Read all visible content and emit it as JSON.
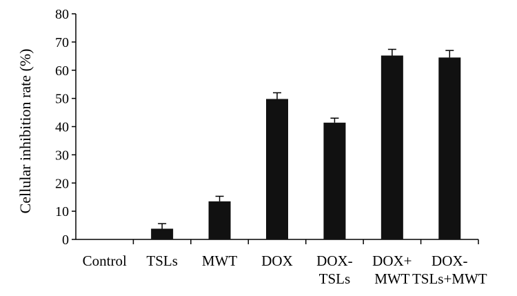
{
  "chart_data": {
    "type": "bar",
    "title": "",
    "xlabel": "",
    "ylabel": "Cellular inhibition rate (%)",
    "ylim": [
      0,
      80
    ],
    "yticks": [
      0,
      10,
      20,
      30,
      40,
      50,
      60,
      70,
      80
    ],
    "categories": [
      [
        "Control"
      ],
      [
        "TSLs"
      ],
      [
        "MWT"
      ],
      [
        "DOX"
      ],
      [
        "DOX-",
        "TSLs"
      ],
      [
        "DOX+",
        "MWT"
      ],
      [
        "DOX-",
        "TSLs+MWT"
      ]
    ],
    "values": [
      0,
      3.8,
      13.5,
      49.8,
      41.4,
      65.2,
      64.5
    ],
    "errors": [
      0,
      1.8,
      1.8,
      2.2,
      1.6,
      2.2,
      2.5
    ],
    "bar_color": "#111111",
    "grid": false,
    "legend": "none"
  }
}
